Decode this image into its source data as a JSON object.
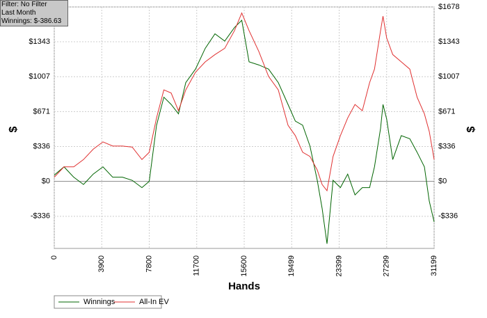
{
  "chart_data": {
    "type": "line",
    "info_box": [
      "Filter: No Filter",
      "Last Month",
      "Winnings: $-386.63"
    ],
    "x_label": "Hands",
    "y_label": "$",
    "y2_label": "$",
    "x": [
      0,
      800,
      1600,
      2400,
      3200,
      4000,
      4800,
      5600,
      6400,
      7200,
      7800,
      8400,
      9000,
      9600,
      10200,
      10800,
      11600,
      12400,
      13200,
      14000,
      14800,
      15400,
      16000,
      16800,
      17600,
      18400,
      19200,
      19800,
      20400,
      21000,
      21600,
      22000,
      22400,
      22900,
      23500,
      24100,
      24700,
      25300,
      25900,
      26300,
      26800,
      27000,
      27300,
      27800,
      28500,
      29200,
      29800,
      30400,
      30800,
      31199
    ],
    "series": [
      {
        "name": "Winnings",
        "color": "#006400",
        "values": [
          60,
          140,
          40,
          -30,
          70,
          140,
          40,
          40,
          10,
          -60,
          0,
          540,
          810,
          740,
          650,
          950,
          1080,
          1280,
          1420,
          1350,
          1480,
          1550,
          1150,
          1120,
          1080,
          950,
          740,
          580,
          540,
          340,
          10,
          -260,
          -600,
          10,
          -60,
          70,
          -130,
          -60,
          -60,
          140,
          510,
          740,
          600,
          210,
          440,
          410,
          280,
          140,
          -190,
          -390
        ]
      },
      {
        "name": "All-In EV",
        "color": "#e03030",
        "values": [
          40,
          140,
          140,
          210,
          310,
          380,
          340,
          340,
          330,
          210,
          280,
          610,
          880,
          850,
          680,
          880,
          1050,
          1150,
          1220,
          1280,
          1450,
          1620,
          1450,
          1250,
          1010,
          880,
          540,
          440,
          280,
          240,
          110,
          -30,
          -90,
          240,
          440,
          610,
          740,
          680,
          950,
          1080,
          1450,
          1590,
          1380,
          1220,
          1150,
          1080,
          810,
          650,
          480,
          210
        ]
      }
    ],
    "xlim": [
      0,
      31199
    ],
    "xticks": [
      0,
      3900,
      7800,
      11700,
      15600,
      19499,
      23399,
      27299,
      31199
    ],
    "ylim": [
      -645,
      1678
    ],
    "yticks": [
      {
        "value": -336,
        "label": "-$336"
      },
      {
        "value": 0,
        "label": "$0"
      },
      {
        "value": 336,
        "label": "$336"
      },
      {
        "value": 671,
        "label": "$671"
      },
      {
        "value": 1007,
        "label": "$1007"
      },
      {
        "value": 1343,
        "label": "$1343"
      },
      {
        "value": 1678,
        "label": "$1678"
      }
    ],
    "grid": true
  }
}
